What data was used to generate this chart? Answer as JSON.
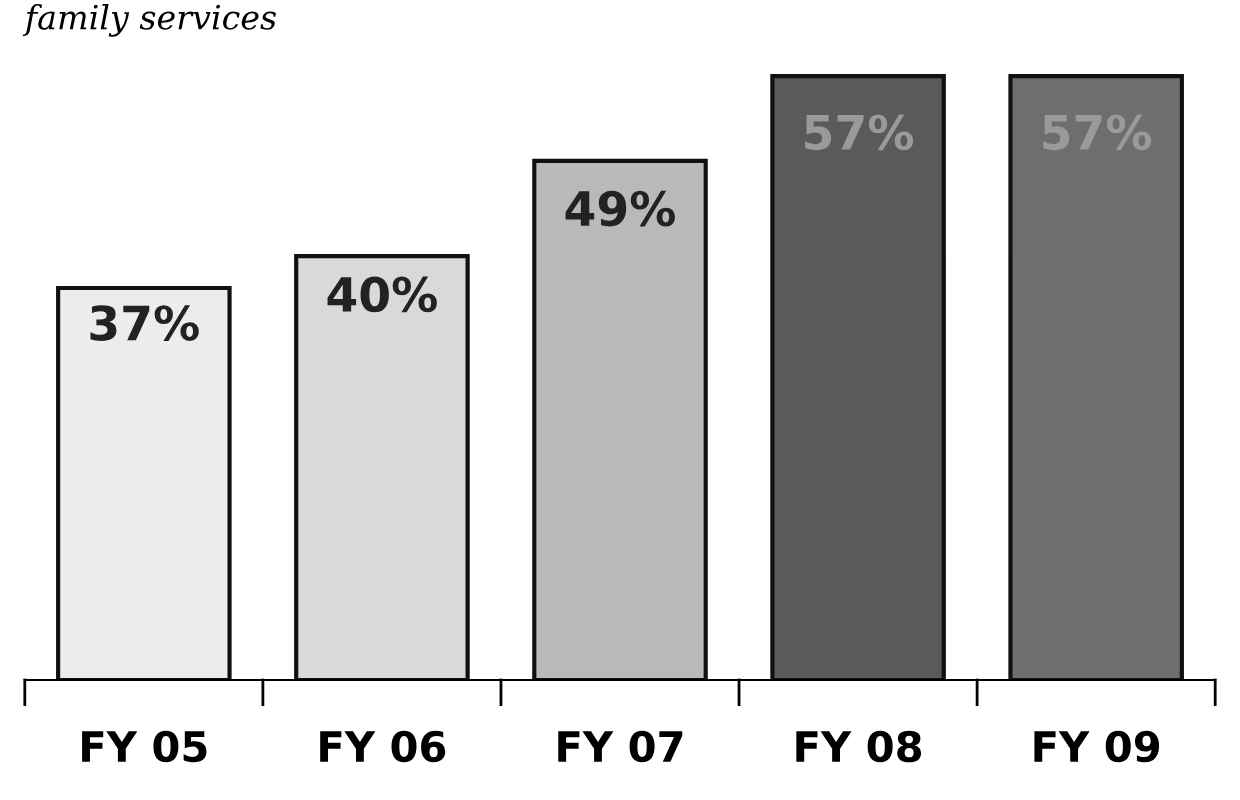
{
  "chart_data": {
    "type": "bar",
    "title": "family services",
    "categories": [
      "FY 05",
      "FY 06",
      "FY 07",
      "FY 08",
      "FY 09"
    ],
    "values": [
      37,
      40,
      49,
      57,
      57
    ],
    "value_labels": [
      "37%",
      "40%",
      "49%",
      "57%",
      "57%"
    ],
    "colors": [
      "#ececec",
      "#d9d9d9",
      "#b9b9b9",
      "#5a5a5a",
      "#6e6e6e"
    ],
    "grid": false,
    "legend": false
  }
}
